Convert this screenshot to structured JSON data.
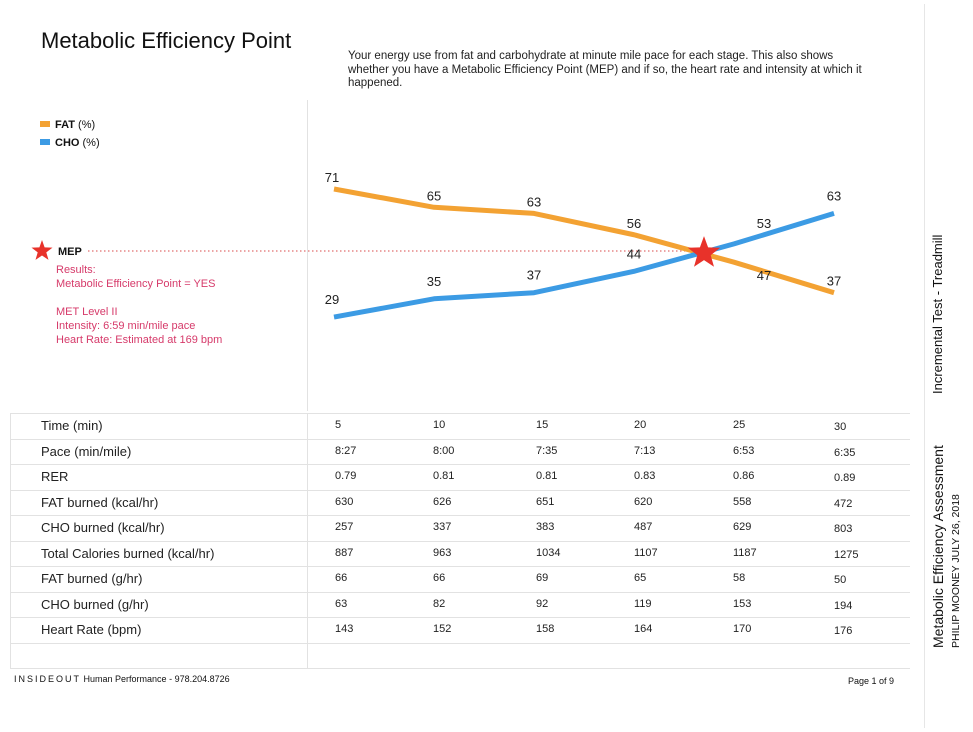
{
  "header": {
    "title": "Metabolic Efficiency Point",
    "description": "Your energy use from fat and carbohydrate at minute mile pace for each stage. This also shows whether you have a Metabolic Efficiency Point (MEP) and if so, the heart rate and intensity at which it happened."
  },
  "legend": [
    {
      "bold": "FAT",
      "unit": "(%)",
      "color": "#f3a233"
    },
    {
      "bold": "CHO",
      "unit": "(%)",
      "color": "#3c9be4"
    }
  ],
  "mep": {
    "label": "MEP",
    "star_color": "#e8322a",
    "lines": [
      "Results:",
      "Metabolic Efficiency Point = YES",
      "",
      "MET Level II",
      "Intensity: 6:59 min/mile pace",
      "Heart Rate: Estimated at 169 bpm"
    ]
  },
  "chart_data": {
    "type": "line",
    "x": [
      5,
      10,
      15,
      20,
      25,
      30
    ],
    "ylim": [
      0,
      100
    ],
    "grid": false,
    "legend_position": "top-left",
    "series": [
      {
        "name": "FAT",
        "color": "#f3a233",
        "values": [
          71,
          65,
          63,
          56,
          47,
          37
        ],
        "labels": [
          "71",
          "65",
          "63",
          "56",
          "47",
          "37"
        ]
      },
      {
        "name": "CHO",
        "color": "#3c9be4",
        "values": [
          29,
          35,
          37,
          44,
          53,
          63
        ],
        "labels": [
          "29",
          "35",
          "37",
          "44",
          "53",
          "63"
        ]
      }
    ],
    "annotations": [
      {
        "type": "star",
        "label": "MEP",
        "x": 23.5,
        "y": 50
      }
    ]
  },
  "table": {
    "rows": [
      {
        "label": "Time (min)",
        "values": [
          "5",
          "10",
          "15",
          "20",
          "25",
          "30"
        ]
      },
      {
        "label": "Pace (min/mile)",
        "values": [
          "8:27",
          "8:00",
          "7:35",
          "7:13",
          "6:53",
          "6:35"
        ]
      },
      {
        "label": "RER",
        "values": [
          "0.79",
          "0.81",
          "0.81",
          "0.83",
          "0.86",
          "0.89"
        ]
      },
      {
        "label": "FAT burned (kcal/hr)",
        "values": [
          "630",
          "626",
          "651",
          "620",
          "558",
          "472"
        ]
      },
      {
        "label": "CHO burned (kcal/hr)",
        "values": [
          "257",
          "337",
          "383",
          "487",
          "629",
          "803"
        ]
      },
      {
        "label": "Total Calories burned (kcal/hr)",
        "values": [
          "887",
          "963",
          "1034",
          "1107",
          "1187",
          "1275"
        ]
      },
      {
        "label": "FAT burned (g/hr)",
        "values": [
          "66",
          "66",
          "69",
          "65",
          "58",
          "50"
        ]
      },
      {
        "label": "CHO burned (g/hr)",
        "values": [
          "63",
          "82",
          "92",
          "119",
          "153",
          "194"
        ]
      },
      {
        "label": "Heart Rate (bpm)",
        "values": [
          "143",
          "152",
          "158",
          "164",
          "170",
          "176"
        ]
      }
    ]
  },
  "footer": {
    "brand": "INSIDEOUT",
    "brand_rest": "Human Performance - 978.204.8726",
    "page": "Page 1 of 9"
  },
  "side": {
    "test": "Incremental Test - Treadmill",
    "assessment": "Metabolic Efficiency Assessment",
    "meta": "PHILIP MOONEY   JULY 26, 2018"
  }
}
